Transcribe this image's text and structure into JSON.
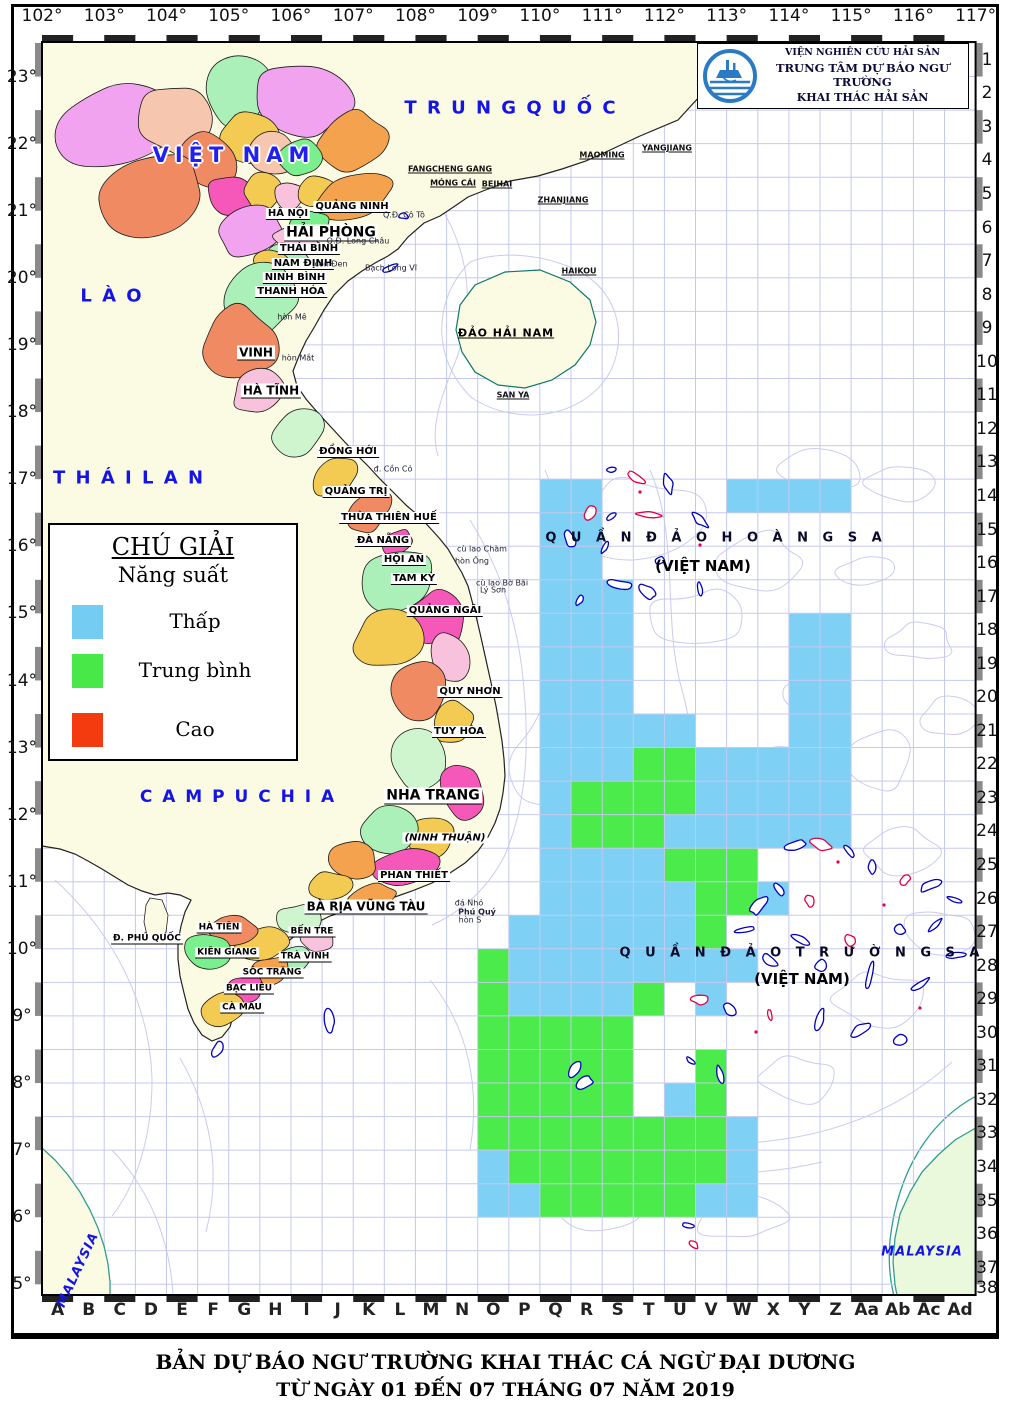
{
  "institute": {
    "line1": "VIỆN NGHIÊN CỨU HẢI SẢN",
    "line2": "TRUNG TÂM DỰ BÁO NGƯ TRƯỜNG",
    "line3": "KHAI THÁC HẢI SẢN"
  },
  "titles": {
    "line1": "BẢN DỰ BÁO NGƯ TRƯỜNG KHAI THÁC CÁ NGỪ ĐẠI DƯƠNG",
    "line2": "TỪ NGÀY 01 ĐẾN 07 THÁNG 07 NĂM 2019"
  },
  "legend": {
    "title": "CHÚ GIẢI",
    "subtitle": "Năng suất",
    "items": [
      {
        "label": "Thấp",
        "color": "#74CCF2"
      },
      {
        "label": "Trung bình",
        "color": "#47E847"
      },
      {
        "label": "Cao",
        "color": "#F43B10"
      }
    ]
  },
  "axes": {
    "lon": [
      "102°",
      "103°",
      "104°",
      "105°",
      "106°",
      "107°",
      "108°",
      "109°",
      "110°",
      "111°",
      "112°",
      "113°",
      "114°",
      "115°",
      "116°",
      "117°"
    ],
    "lat": [
      "23°",
      "22°",
      "21°",
      "20°",
      "19°",
      "18°",
      "17°",
      "16°",
      "15°",
      "14°",
      "13°",
      "12°",
      "11°",
      "10°",
      "9°",
      "8°",
      "7°",
      "6°",
      "5°"
    ],
    "rows": [
      "1",
      "2",
      "3",
      "4",
      "5",
      "6",
      "7",
      "8",
      "9",
      "10",
      "11",
      "12",
      "13",
      "14",
      "15",
      "16",
      "17",
      "18",
      "19",
      "20",
      "21",
      "22",
      "23",
      "24",
      "25",
      "26",
      "27",
      "28",
      "29",
      "30",
      "31",
      "32",
      "33",
      "34",
      "35",
      "36",
      "37",
      "38"
    ],
    "cols": [
      "A",
      "B",
      "C",
      "D",
      "E",
      "F",
      "G",
      "H",
      "I",
      "J",
      "K",
      "L",
      "M",
      "N",
      "O",
      "P",
      "Q",
      "R",
      "S",
      "T",
      "U",
      "V",
      "W",
      "X",
      "Y",
      "Z",
      "Aa",
      "Ab",
      "Ac",
      "Ad"
    ]
  },
  "countries": [
    {
      "label": "T R U N G   Q U Ố C"
    },
    {
      "label": "L À O"
    },
    {
      "label": "T H Á I   L A N"
    },
    {
      "label": "C A M P U C H I A"
    },
    {
      "label": "VIỆT NAM"
    },
    {
      "label": "MALAYSIA"
    },
    {
      "label": "MALAYSIA"
    }
  ],
  "sea_features": [
    {
      "label": "Q U Ầ N   Đ Ả O   H O À N G   S A"
    },
    {
      "label": "(VIỆT NAM)"
    },
    {
      "label": "Q U Ầ N   Đ Ả O   T R Ư Ờ N G   S A"
    },
    {
      "label": "(VIỆT NAM)"
    },
    {
      "label": "ĐẢO HẢI NAM"
    }
  ],
  "provinces": [
    {
      "label": "QUẢNG NINH"
    },
    {
      "label": "HÀ NỘI"
    },
    {
      "label": "HẢI PHÒNG"
    },
    {
      "label": "THÁI BÌNH"
    },
    {
      "label": "NAM ĐỊNH"
    },
    {
      "label": "NINH BÌNH"
    },
    {
      "label": "THANH HÓA"
    },
    {
      "label": "VINH"
    },
    {
      "label": "HÀ TĨNH"
    },
    {
      "label": "ĐỒNG HỚI"
    },
    {
      "label": "QUẢNG TRỊ"
    },
    {
      "label": "THỪA THIÊN HUẾ"
    },
    {
      "label": "ĐÀ NẴNG"
    },
    {
      "label": "HỘI AN"
    },
    {
      "label": "TAM KỲ"
    },
    {
      "label": "QUẢNG NGÃI"
    },
    {
      "label": "QUY NHƠN"
    },
    {
      "label": "TUY HÒA"
    },
    {
      "label": "NHA TRANG"
    },
    {
      "label": "(NINH THUẬN)"
    },
    {
      "label": "PHAN THIẾT"
    },
    {
      "label": "BÀ RỊA VŨNG TÀU"
    },
    {
      "label": "Đ. PHÚ QUỐC"
    },
    {
      "label": "HÀ TIÊN"
    },
    {
      "label": "KIÊN GIANG"
    },
    {
      "label": "BẾN TRE"
    },
    {
      "label": "TRÀ VINH"
    },
    {
      "label": "SÓC TRĂNG"
    },
    {
      "label": "BẠC LIÊU"
    },
    {
      "label": "CÀ MAU"
    }
  ],
  "cities": [
    {
      "label": "FANGCHENG GANG"
    },
    {
      "label": "MÓNG CÁI"
    },
    {
      "label": "BEIHAI"
    },
    {
      "label": "ZHANJIANG"
    },
    {
      "label": "MAOMING"
    },
    {
      "label": "YANGJIANG"
    },
    {
      "label": "HAIKOU"
    },
    {
      "label": "SAN YA"
    }
  ],
  "islands": [
    {
      "label": "Q.Đ. Cô Tô"
    },
    {
      "label": "Q.Đ. Long Châu"
    },
    {
      "label": "cồn Đen"
    },
    {
      "label": "Bạch Long Vĩ"
    },
    {
      "label": "hòn Mê"
    },
    {
      "label": "hòn Mắt"
    },
    {
      "label": "đ. Cồn Cỏ"
    },
    {
      "label": "cù lao Chàm"
    },
    {
      "label": "hòn Ông"
    },
    {
      "label": "cù lao Bờ Bãi"
    },
    {
      "label": "Lý Sơn"
    },
    {
      "label": "đá Nhỏ"
    },
    {
      "label": "Phú Quý"
    },
    {
      "label": "hòn S"
    }
  ],
  "forecast_cells": {
    "low_color": "#7FD0F5",
    "medium_color": "#4BEB4B",
    "high_color": "#F43B10",
    "low": [
      "Q14",
      "R14",
      "W14",
      "X14",
      "Y14",
      "Z14",
      "Q15",
      "R15",
      "Q16",
      "R16",
      "Q17",
      "R17",
      "S17",
      "Q18",
      "R18",
      "S18",
      "Y18",
      "Z18",
      "Q19",
      "R19",
      "S19",
      "Y19",
      "Z19",
      "Q20",
      "R20",
      "S20",
      "Y20",
      "Z20",
      "Q21",
      "R21",
      "S21",
      "T21",
      "U21",
      "Y21",
      "Z21",
      "Q22",
      "R22",
      "S22",
      "V22",
      "W22",
      "X22",
      "Y22",
      "Z22",
      "Q23",
      "V23",
      "W23",
      "X23",
      "Y23",
      "Z23",
      "Q24",
      "U24",
      "V24",
      "W24",
      "X24",
      "Y24",
      "Z24",
      "Q25",
      "R25",
      "S25",
      "T25",
      "Q26",
      "R26",
      "S26",
      "T26",
      "U26",
      "X26",
      "P27",
      "Q27",
      "R27",
      "S27",
      "T27",
      "U27",
      "P28",
      "Q28",
      "R28",
      "S28",
      "T28",
      "U28",
      "V28",
      "W28",
      "P29",
      "Q29",
      "R29",
      "S29",
      "V29",
      "U32",
      "W33",
      "O34",
      "W34",
      "O35",
      "P35",
      "V35",
      "W35"
    ],
    "medium": [
      "T22",
      "U22",
      "R23",
      "S23",
      "T23",
      "U23",
      "R24",
      "S24",
      "T24",
      "U25",
      "V25",
      "W25",
      "V26",
      "W26",
      "V27",
      "O28",
      "O29",
      "T29",
      "O30",
      "P30",
      "Q30",
      "R30",
      "S30",
      "O31",
      "P31",
      "Q31",
      "R31",
      "S31",
      "V31",
      "O32",
      "P32",
      "Q32",
      "R32",
      "S32",
      "V32",
      "O33",
      "P33",
      "Q33",
      "R33",
      "S33",
      "T33",
      "U33",
      "V33",
      "P34",
      "Q34",
      "R34",
      "S34",
      "T34",
      "U34",
      "V34",
      "Q35",
      "R35",
      "S35",
      "T35",
      "U35"
    ],
    "high": []
  }
}
